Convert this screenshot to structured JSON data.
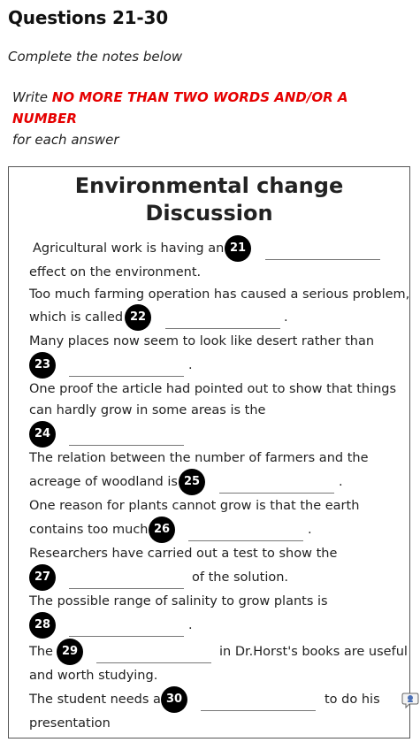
{
  "heading": "Questions 21-30",
  "subheading": "Complete the notes below",
  "instruction": {
    "prefix": "Write ",
    "emphasis": "NO MORE THAN TWO WORDS AND/OR A NUMBER",
    "suffix": "for each answer"
  },
  "notes": {
    "title_line1": "Environmental change",
    "title_line2": "Discussion",
    "q21": {
      "number": "21",
      "before": "Agricultural work is having an",
      "after": "effect on the environment."
    },
    "q22": {
      "number": "22",
      "intro": "Too much farming operation has caused a serious problem,",
      "before": "which is called",
      "after": "."
    },
    "q23": {
      "number": "23",
      "intro": "Many places now seem to look like desert rather than",
      "after": "."
    },
    "q24": {
      "number": "24",
      "intro1": "One proof the article had pointed out to show that things",
      "intro2": "can hardly grow in some areas is the"
    },
    "q25": {
      "number": "25",
      "intro": "The relation between the number of farmers and the",
      "before": "acreage of woodland is",
      "after": "."
    },
    "q26": {
      "number": "26",
      "intro": "One reason for plants cannot grow is that the earth",
      "before": "contains too much",
      "after": "."
    },
    "q27": {
      "number": "27",
      "intro": "Researchers have carried out a test to show the",
      "after": "of the solution."
    },
    "q28": {
      "number": "28",
      "intro": "The possible range of salinity to grow plants is",
      "after": "."
    },
    "q29": {
      "number": "29",
      "before": "The",
      "after": "in Dr.Horst's books are useful",
      "after2": "and worth studying."
    },
    "q30": {
      "number": "30",
      "before": "The student needs a",
      "after": "to do his",
      "after2": "presentation"
    }
  },
  "icons": {
    "chat": "chat-bubble-icon"
  }
}
